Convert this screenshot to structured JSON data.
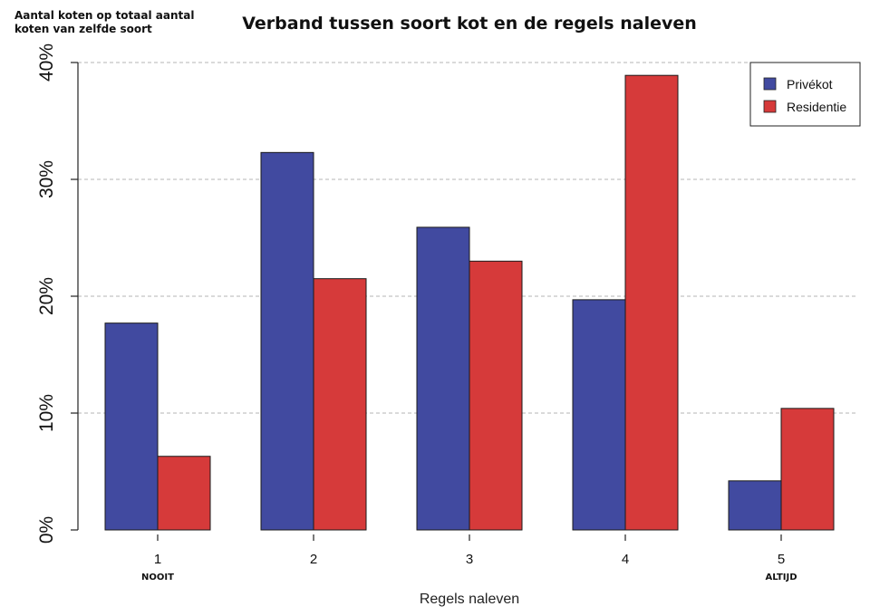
{
  "chart_data": {
    "type": "bar",
    "title": "Verband tussen soort kot en de regels naleven",
    "ylabel": "Aantal koten op totaal aantal koten van zelfde soort",
    "xlabel": "Regels naleven",
    "categories": [
      "1",
      "2",
      "3",
      "4",
      "5"
    ],
    "category_sublabels": [
      "NOOIT",
      "",
      "",
      "",
      "ALTIJD"
    ],
    "series": [
      {
        "name": "Privékot",
        "color": "#414aa0",
        "values": [
          17.7,
          32.3,
          25.9,
          19.7,
          4.2
        ]
      },
      {
        "name": "Residentie",
        "color": "#d63a3a",
        "values": [
          6.3,
          21.5,
          23.0,
          38.9,
          10.4
        ]
      }
    ],
    "ylim": [
      0,
      40
    ],
    "yticks": [
      "0%",
      "10%",
      "20%",
      "30%",
      "40%"
    ],
    "ytick_values": [
      0,
      10,
      20,
      30,
      40
    ],
    "grid": true,
    "legend_position": "top-right"
  }
}
